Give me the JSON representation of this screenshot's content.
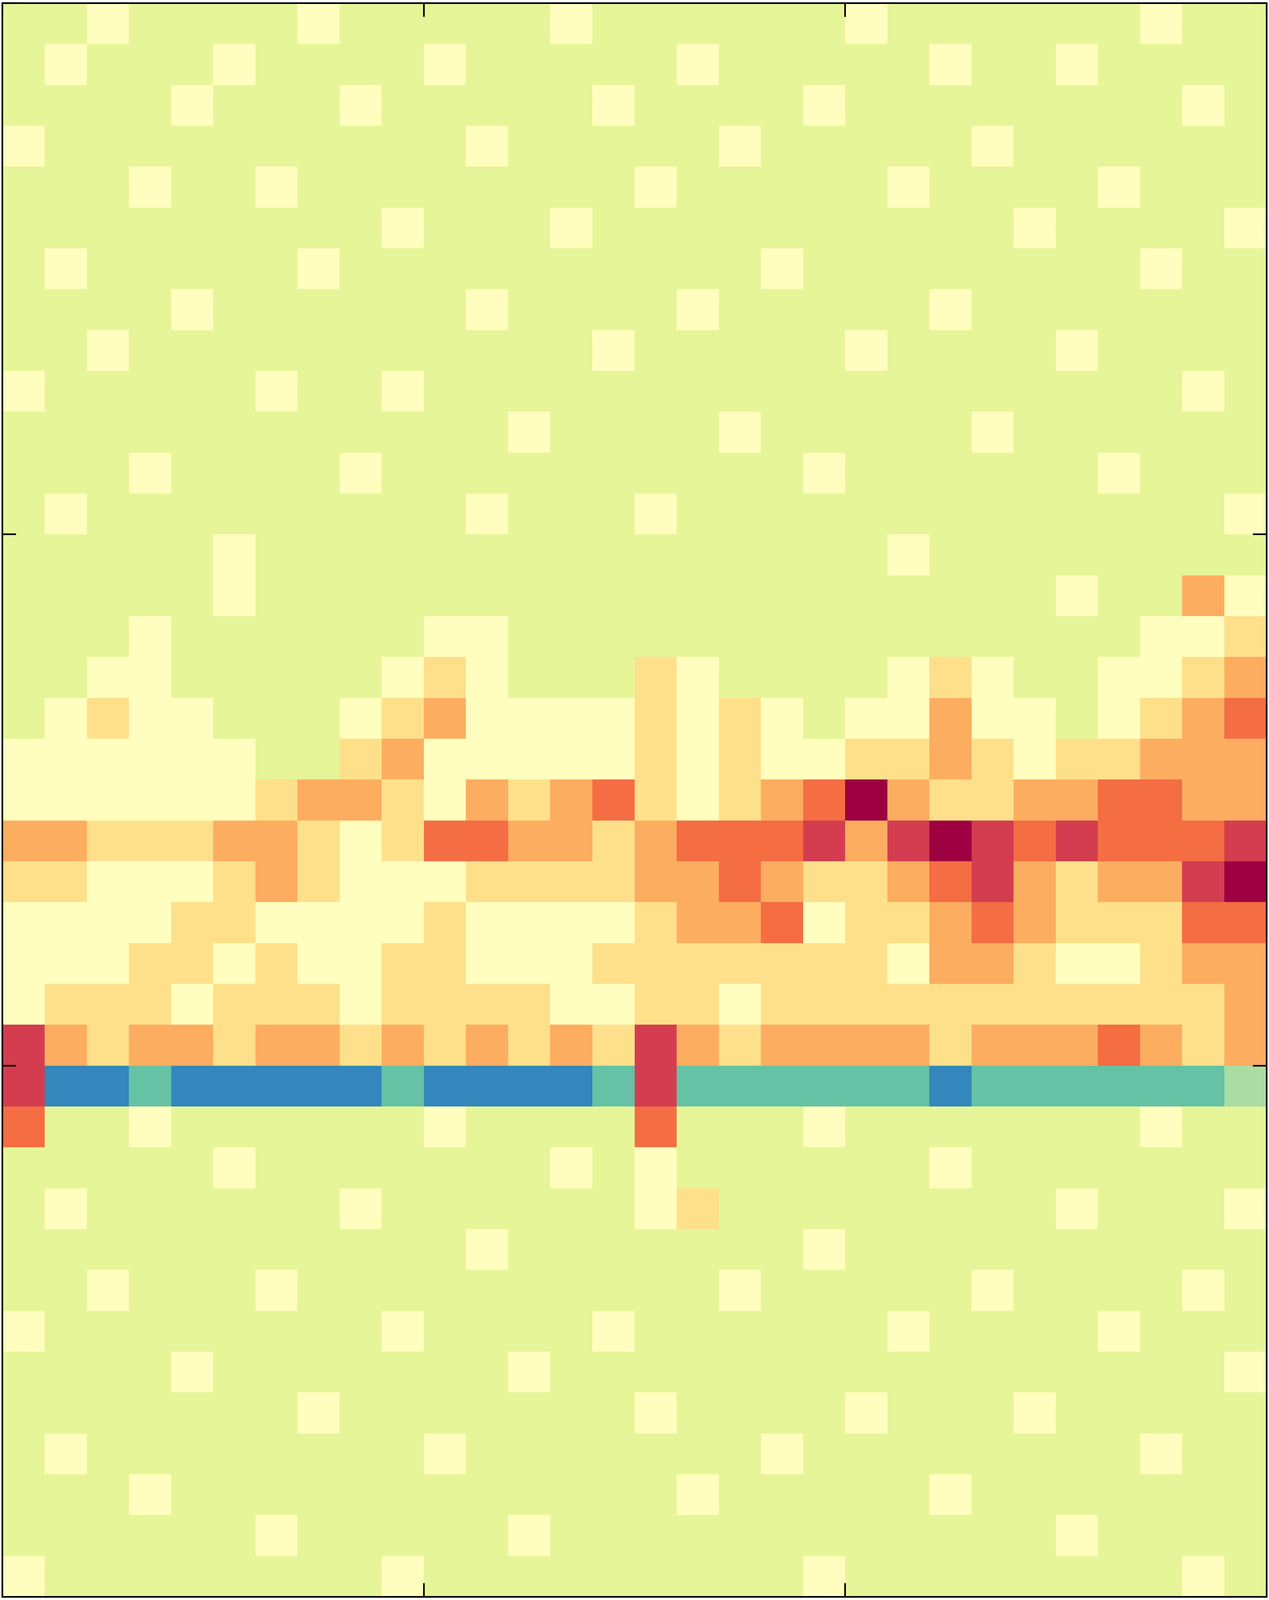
{
  "chart_data": {
    "type": "heatmap",
    "color": "Spectral_r",
    "clim": [
      0,
      10
    ],
    "xlim": [
      0,
      30
    ],
    "ylim": [
      39,
      0
    ],
    "xticks": [
      0,
      10,
      20,
      30
    ],
    "yticks": [
      0,
      13,
      26
    ],
    "tick_labels": false,
    "cells": [
      [
        4,
        4,
        5,
        4,
        4,
        4,
        4,
        5,
        4,
        4,
        4,
        4,
        4,
        5,
        4,
        4,
        4,
        4,
        4,
        4,
        5,
        4,
        4,
        4,
        4,
        4,
        4,
        5,
        4,
        4
      ],
      [
        4,
        5,
        4,
        4,
        4,
        5,
        4,
        4,
        4,
        4,
        5,
        4,
        4,
        4,
        4,
        4,
        5,
        4,
        4,
        4,
        4,
        4,
        5,
        4,
        4,
        5,
        4,
        4,
        4,
        4
      ],
      [
        4,
        4,
        4,
        4,
        5,
        4,
        4,
        4,
        5,
        4,
        4,
        4,
        4,
        4,
        5,
        4,
        4,
        4,
        4,
        5,
        4,
        4,
        4,
        4,
        4,
        4,
        4,
        4,
        5,
        4
      ],
      [
        5,
        4,
        4,
        4,
        4,
        4,
        4,
        4,
        4,
        4,
        4,
        5,
        4,
        4,
        4,
        4,
        4,
        5,
        4,
        4,
        4,
        4,
        4,
        5,
        4,
        4,
        4,
        4,
        4,
        4
      ],
      [
        4,
        4,
        4,
        5,
        4,
        4,
        5,
        4,
        4,
        4,
        4,
        4,
        4,
        4,
        4,
        5,
        4,
        4,
        4,
        4,
        4,
        5,
        4,
        4,
        4,
        4,
        5,
        4,
        4,
        4
      ],
      [
        4,
        4,
        4,
        4,
        4,
        4,
        4,
        4,
        4,
        5,
        4,
        4,
        4,
        5,
        4,
        4,
        4,
        4,
        4,
        4,
        4,
        4,
        4,
        4,
        5,
        4,
        4,
        4,
        4,
        5
      ],
      [
        4,
        5,
        4,
        4,
        4,
        4,
        4,
        5,
        4,
        4,
        4,
        4,
        4,
        4,
        4,
        4,
        4,
        4,
        5,
        4,
        4,
        4,
        4,
        4,
        4,
        4,
        4,
        5,
        4,
        4
      ],
      [
        4,
        4,
        4,
        4,
        5,
        4,
        4,
        4,
        4,
        4,
        4,
        5,
        4,
        4,
        4,
        4,
        5,
        4,
        4,
        4,
        4,
        4,
        5,
        4,
        4,
        4,
        4,
        4,
        4,
        4
      ],
      [
        4,
        4,
        5,
        4,
        4,
        4,
        4,
        4,
        4,
        4,
        4,
        4,
        4,
        4,
        5,
        4,
        4,
        4,
        4,
        4,
        5,
        4,
        4,
        4,
        4,
        5,
        4,
        4,
        4,
        4
      ],
      [
        5,
        4,
        4,
        4,
        4,
        4,
        5,
        4,
        4,
        5,
        4,
        4,
        4,
        4,
        4,
        4,
        4,
        4,
        4,
        4,
        4,
        4,
        4,
        4,
        4,
        4,
        4,
        4,
        5,
        4
      ],
      [
        4,
        4,
        4,
        4,
        4,
        4,
        4,
        4,
        4,
        4,
        4,
        4,
        5,
        4,
        4,
        4,
        4,
        5,
        4,
        4,
        4,
        4,
        4,
        5,
        4,
        4,
        4,
        4,
        4,
        4
      ],
      [
        4,
        4,
        4,
        5,
        4,
        4,
        4,
        4,
        5,
        4,
        4,
        4,
        4,
        4,
        4,
        4,
        4,
        4,
        4,
        5,
        4,
        4,
        4,
        4,
        4,
        4,
        5,
        4,
        4,
        4
      ],
      [
        4,
        5,
        4,
        4,
        4,
        4,
        4,
        4,
        4,
        4,
        4,
        5,
        4,
        4,
        4,
        5,
        4,
        4,
        4,
        4,
        4,
        4,
        4,
        4,
        4,
        4,
        4,
        4,
        4,
        5
      ],
      [
        4,
        4,
        4,
        4,
        4,
        5,
        4,
        4,
        4,
        4,
        4,
        4,
        4,
        4,
        4,
        4,
        4,
        4,
        4,
        4,
        4,
        5,
        4,
        4,
        4,
        4,
        4,
        4,
        4,
        4
      ],
      [
        4,
        4,
        4,
        4,
        4,
        5,
        4,
        4,
        4,
        4,
        4,
        4,
        4,
        4,
        4,
        4,
        4,
        4,
        4,
        4,
        4,
        4,
        4,
        4,
        4,
        5,
        4,
        4,
        7,
        5
      ],
      [
        4,
        4,
        4,
        5,
        4,
        4,
        4,
        4,
        4,
        4,
        5,
        5,
        4,
        4,
        4,
        4,
        4,
        4,
        4,
        4,
        4,
        4,
        4,
        4,
        4,
        4,
        4,
        5,
        5,
        6
      ],
      [
        4,
        4,
        5,
        5,
        4,
        4,
        4,
        4,
        4,
        5,
        6,
        5,
        4,
        4,
        4,
        6,
        5,
        4,
        4,
        4,
        4,
        5,
        6,
        5,
        4,
        4,
        5,
        5,
        6,
        7
      ],
      [
        4,
        5,
        6,
        5,
        5,
        4,
        4,
        4,
        5,
        6,
        7,
        5,
        5,
        5,
        5,
        6,
        5,
        6,
        5,
        4,
        5,
        5,
        7,
        5,
        5,
        4,
        5,
        6,
        7,
        8
      ],
      [
        5,
        5,
        5,
        5,
        5,
        5,
        4,
        4,
        6,
        7,
        5,
        5,
        5,
        5,
        5,
        6,
        5,
        6,
        5,
        5,
        6,
        6,
        7,
        6,
        5,
        6,
        6,
        7,
        7,
        7
      ],
      [
        5,
        5,
        5,
        5,
        5,
        5,
        6,
        7,
        7,
        6,
        5,
        7,
        6,
        7,
        8,
        6,
        5,
        6,
        7,
        8,
        10,
        7,
        6,
        6,
        7,
        7,
        8,
        8,
        7,
        7
      ],
      [
        7,
        7,
        6,
        6,
        6,
        7,
        7,
        6,
        5,
        6,
        8,
        8,
        7,
        7,
        6,
        7,
        8,
        8,
        8,
        9,
        7,
        9,
        10,
        9,
        8,
        9,
        8,
        8,
        8,
        9
      ],
      [
        6,
        6,
        5,
        5,
        5,
        6,
        7,
        6,
        5,
        5,
        5,
        6,
        6,
        6,
        6,
        7,
        7,
        8,
        7,
        6,
        6,
        7,
        8,
        9,
        7,
        6,
        7,
        7,
        9,
        10
      ],
      [
        5,
        5,
        5,
        5,
        6,
        6,
        5,
        5,
        5,
        5,
        6,
        5,
        5,
        5,
        5,
        6,
        7,
        7,
        8,
        5,
        6,
        6,
        7,
        8,
        7,
        6,
        6,
        6,
        8,
        8
      ],
      [
        5,
        5,
        5,
        6,
        6,
        5,
        6,
        5,
        5,
        6,
        6,
        5,
        5,
        5,
        6,
        6,
        6,
        6,
        6,
        6,
        6,
        5,
        7,
        7,
        6,
        5,
        5,
        6,
        7,
        7
      ],
      [
        5,
        6,
        6,
        6,
        5,
        6,
        6,
        6,
        5,
        6,
        6,
        6,
        6,
        5,
        5,
        6,
        6,
        5,
        6,
        6,
        6,
        6,
        6,
        6,
        6,
        6,
        6,
        6,
        6,
        7
      ],
      [
        9,
        7,
        6,
        7,
        7,
        6,
        7,
        7,
        6,
        7,
        6,
        7,
        6,
        7,
        6,
        9,
        7,
        6,
        7,
        7,
        7,
        7,
        6,
        7,
        7,
        7,
        8,
        7,
        6,
        7
      ],
      [
        9,
        1,
        1,
        2,
        1,
        1,
        1,
        1,
        1,
        2,
        1,
        1,
        1,
        1,
        2,
        9,
        2,
        2,
        2,
        2,
        2,
        2,
        1,
        2,
        2,
        2,
        2,
        2,
        2,
        3
      ],
      [
        8,
        4,
        4,
        5,
        4,
        4,
        4,
        4,
        4,
        4,
        5,
        4,
        4,
        4,
        4,
        8,
        4,
        4,
        4,
        5,
        4,
        4,
        4,
        4,
        4,
        4,
        4,
        5,
        4,
        4
      ],
      [
        4,
        4,
        4,
        4,
        4,
        5,
        4,
        4,
        4,
        4,
        4,
        4,
        4,
        5,
        4,
        5,
        4,
        4,
        4,
        4,
        4,
        4,
        5,
        4,
        4,
        4,
        4,
        4,
        4,
        4
      ],
      [
        4,
        5,
        4,
        4,
        4,
        4,
        4,
        4,
        5,
        4,
        4,
        4,
        4,
        4,
        4,
        5,
        6,
        4,
        4,
        4,
        4,
        4,
        4,
        4,
        4,
        5,
        4,
        4,
        4,
        5
      ],
      [
        4,
        4,
        4,
        4,
        4,
        4,
        4,
        4,
        4,
        4,
        4,
        5,
        4,
        4,
        4,
        4,
        4,
        4,
        4,
        5,
        4,
        4,
        4,
        4,
        4,
        4,
        4,
        4,
        4,
        4
      ],
      [
        4,
        4,
        5,
        4,
        4,
        4,
        5,
        4,
        4,
        4,
        4,
        4,
        4,
        4,
        4,
        4,
        4,
        5,
        4,
        4,
        4,
        4,
        4,
        5,
        4,
        4,
        4,
        4,
        5,
        4
      ],
      [
        5,
        4,
        4,
        4,
        4,
        4,
        4,
        4,
        4,
        5,
        4,
        4,
        4,
        4,
        5,
        4,
        4,
        4,
        4,
        4,
        4,
        5,
        4,
        4,
        4,
        4,
        5,
        4,
        4,
        4
      ],
      [
        4,
        4,
        4,
        4,
        5,
        4,
        4,
        4,
        4,
        4,
        4,
        4,
        5,
        4,
        4,
        4,
        4,
        4,
        4,
        4,
        4,
        4,
        4,
        4,
        4,
        4,
        4,
        4,
        4,
        5
      ],
      [
        4,
        4,
        4,
        4,
        4,
        4,
        4,
        5,
        4,
        4,
        4,
        4,
        4,
        4,
        4,
        5,
        4,
        4,
        4,
        4,
        5,
        4,
        4,
        4,
        5,
        4,
        4,
        4,
        4,
        4
      ],
      [
        4,
        5,
        4,
        4,
        4,
        4,
        4,
        4,
        4,
        4,
        5,
        4,
        4,
        4,
        4,
        4,
        4,
        4,
        5,
        4,
        4,
        4,
        4,
        4,
        4,
        4,
        4,
        5,
        4,
        4
      ],
      [
        4,
        4,
        4,
        5,
        4,
        4,
        4,
        4,
        4,
        4,
        4,
        4,
        4,
        4,
        4,
        4,
        5,
        4,
        4,
        4,
        4,
        4,
        5,
        4,
        4,
        4,
        4,
        4,
        4,
        4
      ],
      [
        4,
        4,
        4,
        4,
        4,
        4,
        5,
        4,
        4,
        4,
        4,
        4,
        5,
        4,
        4,
        4,
        4,
        4,
        4,
        4,
        4,
        4,
        4,
        4,
        4,
        5,
        4,
        4,
        4,
        4
      ],
      [
        5,
        4,
        4,
        4,
        4,
        4,
        4,
        4,
        4,
        5,
        4,
        4,
        4,
        4,
        4,
        4,
        4,
        4,
        4,
        5,
        4,
        4,
        4,
        4,
        4,
        4,
        4,
        4,
        5,
        4
      ]
    ]
  }
}
